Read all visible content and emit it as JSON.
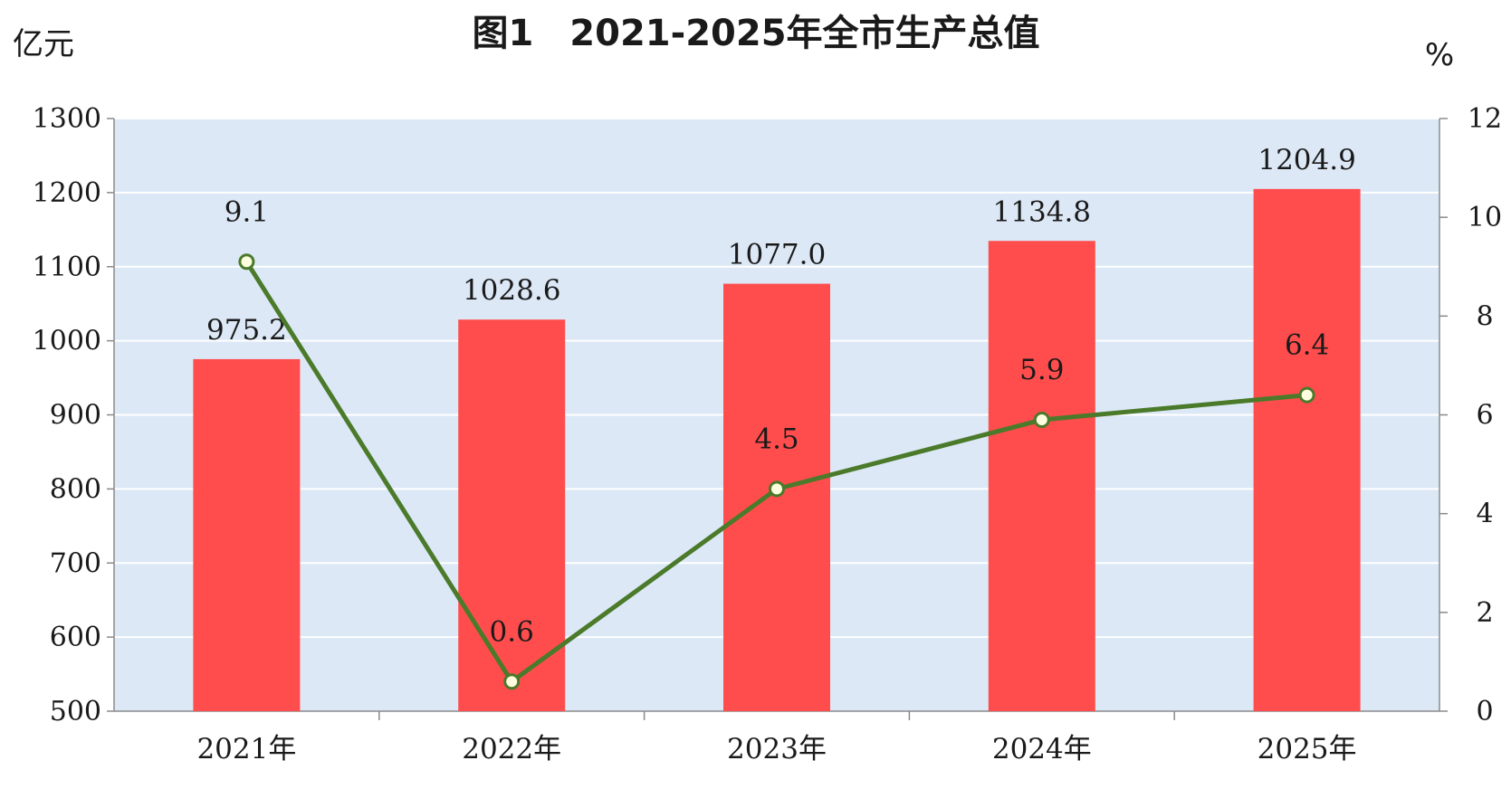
{
  "chart_data": {
    "type": "bar",
    "title": "图1　2021-2025年全市生产总值",
    "categories": [
      "2021年",
      "2022年",
      "2023年",
      "2024年",
      "2025年"
    ],
    "series": [
      {
        "kind": "bar",
        "axis": "left",
        "values": [
          975.2,
          1028.6,
          1077.0,
          1134.8,
          1204.9
        ],
        "labels": [
          "975.2",
          "1028.6",
          "1077.0",
          "1134.8",
          "1204.9"
        ],
        "color": "#ff4d4d"
      },
      {
        "kind": "line",
        "axis": "right",
        "values": [
          9.1,
          0.6,
          4.5,
          5.9,
          6.4
        ],
        "labels": [
          "9.1",
          "0.6",
          "4.5",
          "5.9",
          "6.4"
        ],
        "color": "#4a7a2a",
        "marker_fill": "#ffffe0"
      }
    ],
    "y_left": {
      "unit": "亿元",
      "ylim": [
        500,
        1300
      ],
      "ticks": [
        500,
        600,
        700,
        800,
        900,
        1000,
        1100,
        1200,
        1300
      ],
      "tick_labels": [
        "500",
        "600",
        "700",
        "800",
        "900",
        "1000",
        "1100",
        "1200",
        "1300"
      ]
    },
    "y_right": {
      "unit": "%",
      "ylim": [
        0,
        12
      ],
      "ticks": [
        0,
        2,
        4,
        6,
        8,
        10,
        12
      ],
      "tick_labels": [
        "0",
        "2",
        "4",
        "6",
        "8",
        "10",
        "12"
      ]
    },
    "grid": true,
    "plot_background": "#dce8f6",
    "gridline_color": "#ffffff"
  }
}
